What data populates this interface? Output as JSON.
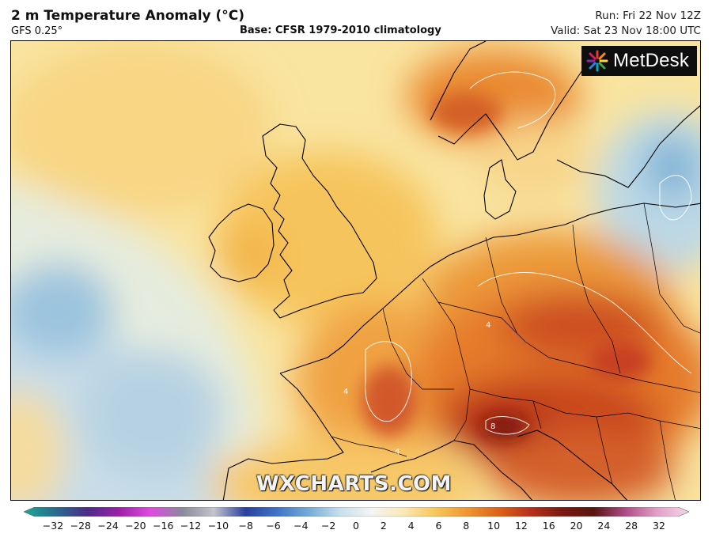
{
  "header": {
    "title": "2 m Temperature Anomaly (°C)",
    "model": "GFS 0.25°",
    "base": "Base: CFSR 1979-2010 climatology",
    "run": "Run: Fri 22 Nov 12Z",
    "valid": "Valid: Sat 23 Nov 18:00 UTC"
  },
  "logo": {
    "text": "MetDesk",
    "icon": "metdesk-starburst-icon"
  },
  "watermark": "WXCHARTS.COM",
  "map": {
    "region": "Western and Central Europe",
    "contour_labels": [
      "4",
      "8",
      "4",
      "4"
    ],
    "colors": {
      "cold_blue": "#9cc4de",
      "light_blue": "#d6e6ee",
      "neutral": "#f6f2dc",
      "pale_yellow": "#f9e4a0",
      "yellow": "#f7c860",
      "orange": "#ef9a38",
      "dark_orange": "#dd6a22",
      "red": "#c2401d",
      "dark_red": "#8c1a12"
    }
  },
  "colorbar": {
    "ticks": [
      "−32",
      "−28",
      "−24",
      "−20",
      "−16",
      "−12",
      "−10",
      "−8",
      "−6",
      "−4",
      "−2",
      "0",
      "2",
      "4",
      "6",
      "8",
      "10",
      "12",
      "16",
      "20",
      "24",
      "28",
      "32"
    ],
    "stops": [
      "#1aa898",
      "#2a6c8c",
      "#4b2c8a",
      "#9c20a8",
      "#e04ae0",
      "#8a8a9a",
      "#c4c4cc",
      "#2b3f9e",
      "#3f74c8",
      "#76acd8",
      "#c8e0ee",
      "#f4f4f4",
      "#fbe8b4",
      "#f7c65a",
      "#ef9630",
      "#de6018",
      "#b8301a",
      "#7a1a14",
      "#5a1410",
      "#b04c88",
      "#e4a0c8",
      "#f3d8e8"
    ]
  }
}
